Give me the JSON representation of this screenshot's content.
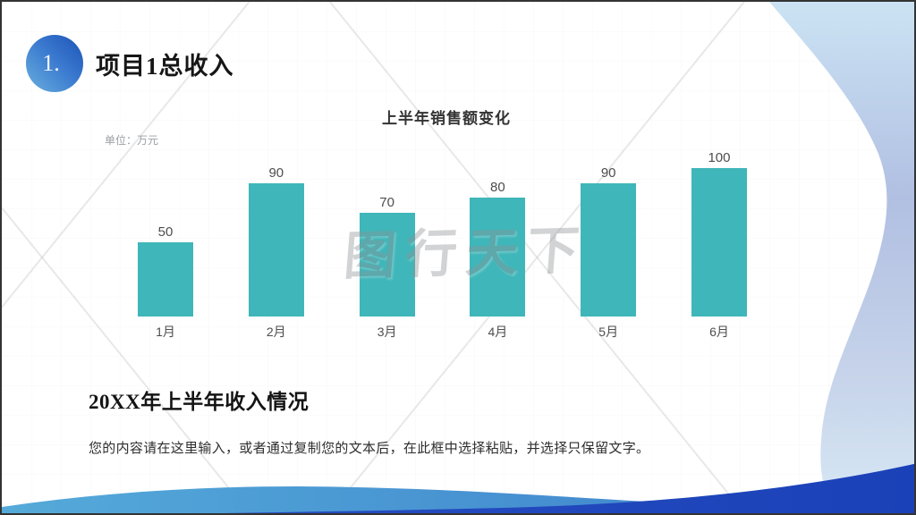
{
  "header": {
    "number": "1.",
    "title": "项目1总收入"
  },
  "watermark": {
    "text": "图行天下"
  },
  "chart_data": {
    "type": "bar",
    "title": "上半年销售额变化",
    "unit_label": "单位：万元",
    "categories": [
      "1月",
      "2月",
      "3月",
      "4月",
      "5月",
      "6月"
    ],
    "values": [
      50,
      90,
      70,
      80,
      90,
      100
    ],
    "xlabel": "",
    "ylabel": "万元",
    "ylim": [
      0,
      100
    ],
    "grid": false,
    "legend": "none",
    "bar_color": "#3FB6B9",
    "value_label_color": "#4d4d4d"
  },
  "text_block": {
    "subtitle": "20XX年上半年收入情况",
    "body": "您的内容请在这里输入，或者通过复制您的文本后，在此框中选择粘贴，并选择只保留文字。"
  },
  "colors": {
    "accent_teal": "#3FB6B9",
    "circle_gradient_dark": "#1C53B7",
    "circle_gradient_light": "#6AB0DE",
    "right_wave_top": "#CBE3F3",
    "right_wave_mid": "#B1BFE2",
    "bottom_wave_light_left": "#54AAD9",
    "bottom_wave_light_right": "#3C7DCB",
    "bottom_wave_dark_left": "#2A52C4",
    "bottom_wave_dark_right": "#1B41B8"
  }
}
